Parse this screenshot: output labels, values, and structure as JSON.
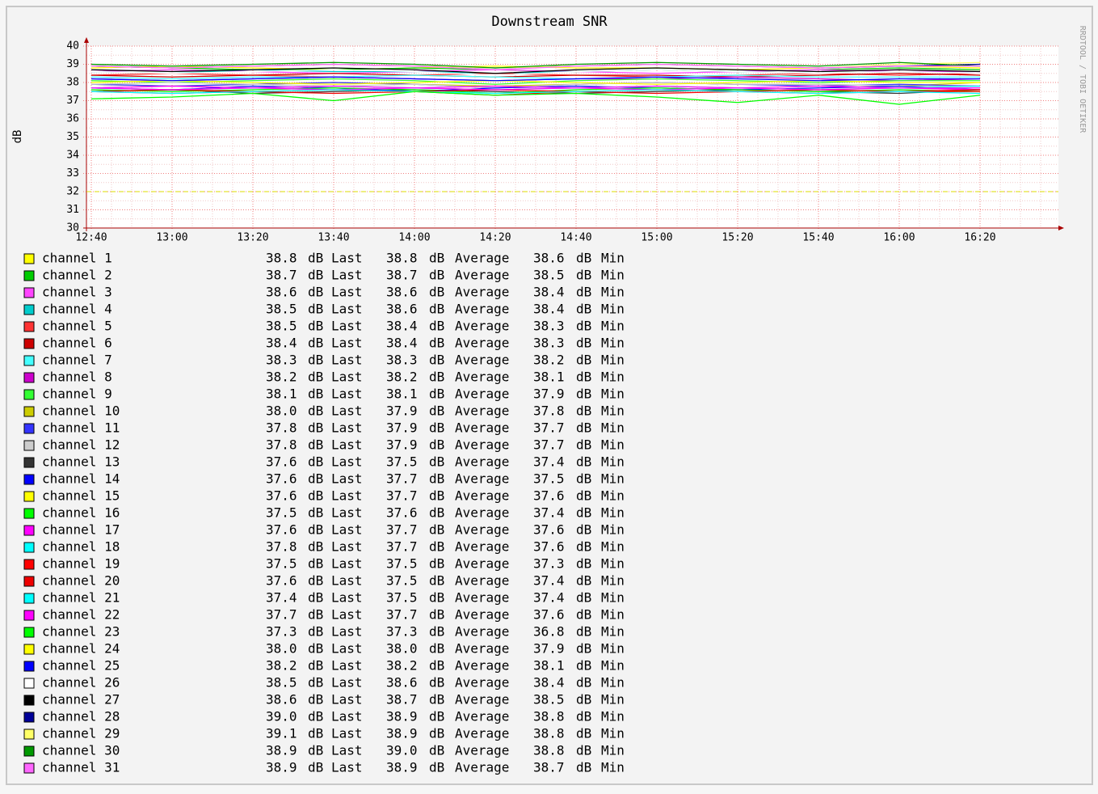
{
  "chart_data": {
    "type": "line",
    "title": "Downstream SNR",
    "y_label": "dB",
    "watermark": "RRDTOOL / TOBI OETIKER",
    "x": [
      "12:40",
      "13:00",
      "13:20",
      "13:40",
      "14:00",
      "14:20",
      "14:40",
      "15:00",
      "15:20",
      "15:40",
      "16:00",
      "16:20"
    ],
    "ylim": [
      30,
      40
    ],
    "yticks": [
      30,
      31,
      32,
      33,
      34,
      35,
      36,
      37,
      38,
      39,
      40
    ],
    "grid": true,
    "hrule": {
      "value": 32,
      "color": "#dddd00"
    },
    "unit": "dB",
    "stat_names": [
      "Last",
      "Average",
      "Min"
    ],
    "series": [
      {
        "name": "channel 1",
        "color": "#ffff00",
        "values": [
          38.8,
          38.9,
          38.8,
          38.7,
          38.8,
          38.9,
          38.8,
          38.8,
          38.7,
          38.8,
          38.9,
          38.8
        ],
        "stats": [
          38.8,
          38.8,
          38.6
        ],
        "stat_labels": [
          "38.8",
          "38.8",
          "38.6"
        ]
      },
      {
        "name": "channel 2",
        "color": "#00cc00",
        "values": [
          38.9,
          38.8,
          38.7,
          38.7,
          38.8,
          38.7,
          38.6,
          38.7,
          38.6,
          38.7,
          38.8,
          38.7
        ],
        "stats": [
          38.7,
          38.7,
          38.5
        ],
        "stat_labels": [
          "38.7",
          "38.7",
          "38.5"
        ]
      },
      {
        "name": "channel 3",
        "color": "#ff44ff",
        "values": [
          38.6,
          38.7,
          38.6,
          38.5,
          38.6,
          38.7,
          38.6,
          38.5,
          38.6,
          38.7,
          38.6,
          38.6
        ],
        "stats": [
          38.6,
          38.6,
          38.4
        ],
        "stat_labels": [
          "38.6",
          "38.6",
          "38.4"
        ]
      },
      {
        "name": "channel 4",
        "color": "#00cccc",
        "values": [
          38.6,
          38.5,
          38.7,
          38.6,
          38.6,
          38.5,
          38.6,
          38.7,
          38.6,
          38.5,
          38.6,
          38.5
        ],
        "stats": [
          38.5,
          38.6,
          38.4
        ],
        "stat_labels": [
          "38.5",
          "38.6",
          "38.4"
        ]
      },
      {
        "name": "channel 5",
        "color": "#ff3333",
        "values": [
          38.4,
          38.5,
          38.4,
          38.3,
          38.4,
          38.5,
          38.4,
          38.3,
          38.4,
          38.5,
          38.4,
          38.5
        ],
        "stats": [
          38.5,
          38.4,
          38.3
        ],
        "stat_labels": [
          "38.5",
          "38.4",
          "38.3"
        ]
      },
      {
        "name": "channel 6",
        "color": "#cc0000",
        "values": [
          38.4,
          38.3,
          38.4,
          38.5,
          38.4,
          38.3,
          38.4,
          38.4,
          38.3,
          38.4,
          38.5,
          38.4
        ],
        "stats": [
          38.4,
          38.4,
          38.3
        ],
        "stat_labels": [
          "38.4",
          "38.4",
          "38.3"
        ]
      },
      {
        "name": "channel 7",
        "color": "#44ffff",
        "values": [
          38.3,
          38.2,
          38.3,
          38.3,
          38.4,
          38.3,
          38.2,
          38.3,
          38.4,
          38.3,
          38.3,
          38.3
        ],
        "stats": [
          38.3,
          38.3,
          38.2
        ],
        "stat_labels": [
          "38.3",
          "38.3",
          "38.2"
        ]
      },
      {
        "name": "channel 8",
        "color": "#cc00cc",
        "values": [
          38.2,
          38.1,
          38.2,
          38.3,
          38.2,
          38.1,
          38.2,
          38.2,
          38.3,
          38.2,
          38.1,
          38.2
        ],
        "stats": [
          38.2,
          38.2,
          38.1
        ],
        "stat_labels": [
          "38.2",
          "38.2",
          "38.1"
        ]
      },
      {
        "name": "channel 9",
        "color": "#33ff33",
        "values": [
          38.1,
          38.0,
          38.1,
          38.2,
          38.1,
          37.9,
          38.1,
          38.2,
          38.1,
          38.0,
          38.1,
          38.1
        ],
        "stats": [
          38.1,
          38.1,
          37.9
        ],
        "stat_labels": [
          "38.1",
          "38.1",
          "37.9"
        ]
      },
      {
        "name": "channel 10",
        "color": "#cccc00",
        "values": [
          37.9,
          37.8,
          37.9,
          38.0,
          37.9,
          37.8,
          37.9,
          38.0,
          37.9,
          37.9,
          37.8,
          38.0
        ],
        "stats": [
          38.0,
          37.9,
          37.8
        ],
        "stat_labels": [
          "38.0",
          "37.9",
          "37.8"
        ]
      },
      {
        "name": "channel 11",
        "color": "#3333ff",
        "values": [
          37.9,
          37.8,
          37.9,
          38.0,
          37.9,
          37.7,
          37.9,
          38.0,
          37.9,
          37.8,
          37.9,
          37.8
        ],
        "stats": [
          37.8,
          37.9,
          37.7
        ],
        "stat_labels": [
          "37.8",
          "37.9",
          "37.7"
        ]
      },
      {
        "name": "channel 12",
        "color": "#cccccc",
        "values": [
          37.9,
          38.0,
          37.9,
          37.8,
          37.9,
          37.7,
          37.9,
          38.0,
          37.9,
          37.9,
          37.8,
          37.8
        ],
        "stats": [
          37.8,
          37.9,
          37.7
        ],
        "stat_labels": [
          "37.8",
          "37.9",
          "37.7"
        ]
      },
      {
        "name": "channel 13",
        "color": "#333333",
        "values": [
          37.5,
          37.6,
          37.4,
          37.5,
          37.6,
          37.5,
          37.4,
          37.5,
          37.6,
          37.5,
          37.4,
          37.6
        ],
        "stats": [
          37.6,
          37.5,
          37.4
        ],
        "stat_labels": [
          "37.6",
          "37.5",
          "37.4"
        ]
      },
      {
        "name": "channel 14",
        "color": "#0000ff",
        "values": [
          37.7,
          37.6,
          37.8,
          37.7,
          37.5,
          37.7,
          37.8,
          37.7,
          37.6,
          37.7,
          37.8,
          37.6
        ],
        "stats": [
          37.6,
          37.7,
          37.5
        ],
        "stat_labels": [
          "37.6",
          "37.7",
          "37.5"
        ]
      },
      {
        "name": "channel 15",
        "color": "#ffff00",
        "values": [
          37.7,
          37.6,
          37.7,
          37.8,
          37.7,
          37.6,
          37.7,
          37.8,
          37.7,
          37.6,
          37.7,
          37.6
        ],
        "stats": [
          37.6,
          37.7,
          37.6
        ],
        "stat_labels": [
          "37.6",
          "37.7",
          "37.6"
        ]
      },
      {
        "name": "channel 16",
        "color": "#00ff00",
        "values": [
          37.6,
          37.5,
          37.6,
          37.7,
          37.6,
          37.4,
          37.6,
          37.7,
          37.6,
          37.5,
          37.6,
          37.5
        ],
        "stats": [
          37.5,
          37.6,
          37.4
        ],
        "stat_labels": [
          "37.5",
          "37.6",
          "37.4"
        ]
      },
      {
        "name": "channel 17",
        "color": "#ff00ff",
        "values": [
          37.7,
          37.8,
          37.7,
          37.6,
          37.7,
          37.8,
          37.7,
          37.6,
          37.7,
          37.8,
          37.7,
          37.6
        ],
        "stats": [
          37.6,
          37.7,
          37.6
        ],
        "stat_labels": [
          "37.6",
          "37.7",
          "37.6"
        ]
      },
      {
        "name": "channel 18",
        "color": "#00ffff",
        "values": [
          37.7,
          37.6,
          37.7,
          37.8,
          37.7,
          37.6,
          37.7,
          37.8,
          37.7,
          37.6,
          37.7,
          37.8
        ],
        "stats": [
          37.8,
          37.7,
          37.6
        ],
        "stat_labels": [
          "37.8",
          "37.7",
          "37.6"
        ]
      },
      {
        "name": "channel 19",
        "color": "#ff0000",
        "values": [
          37.5,
          37.4,
          37.5,
          37.6,
          37.5,
          37.3,
          37.5,
          37.6,
          37.5,
          37.4,
          37.5,
          37.5
        ],
        "stats": [
          37.5,
          37.5,
          37.3
        ],
        "stat_labels": [
          "37.5",
          "37.5",
          "37.3"
        ]
      },
      {
        "name": "channel 20",
        "color": "#ee0000",
        "values": [
          37.5,
          37.6,
          37.5,
          37.4,
          37.5,
          37.6,
          37.5,
          37.4,
          37.5,
          37.6,
          37.5,
          37.6
        ],
        "stats": [
          37.6,
          37.5,
          37.4
        ],
        "stat_labels": [
          "37.6",
          "37.5",
          "37.4"
        ]
      },
      {
        "name": "channel 21",
        "color": "#00ffff",
        "values": [
          37.5,
          37.4,
          37.5,
          37.6,
          37.5,
          37.4,
          37.5,
          37.6,
          37.5,
          37.4,
          37.5,
          37.4
        ],
        "stats": [
          37.4,
          37.5,
          37.4
        ],
        "stat_labels": [
          "37.4",
          "37.5",
          "37.4"
        ]
      },
      {
        "name": "channel 22",
        "color": "#ff00ff",
        "values": [
          37.7,
          37.6,
          37.7,
          37.8,
          37.7,
          37.6,
          37.7,
          37.8,
          37.7,
          37.6,
          37.7,
          37.7
        ],
        "stats": [
          37.7,
          37.7,
          37.6
        ],
        "stat_labels": [
          "37.7",
          "37.7",
          "37.6"
        ]
      },
      {
        "name": "channel 23",
        "color": "#00ff00",
        "values": [
          37.1,
          37.2,
          37.4,
          37.0,
          37.5,
          37.3,
          37.4,
          37.2,
          36.9,
          37.3,
          36.8,
          37.3
        ],
        "stats": [
          37.3,
          37.3,
          36.8
        ],
        "stat_labels": [
          "37.3",
          "37.3",
          "36.8"
        ]
      },
      {
        "name": "channel 24",
        "color": "#ffff00",
        "values": [
          38.0,
          38.1,
          38.0,
          37.9,
          38.0,
          38.1,
          38.0,
          37.9,
          38.0,
          38.1,
          38.0,
          38.0
        ],
        "stats": [
          38.0,
          38.0,
          37.9
        ],
        "stat_labels": [
          "38.0",
          "38.0",
          "37.9"
        ]
      },
      {
        "name": "channel 25",
        "color": "#0000ff",
        "values": [
          38.2,
          38.1,
          38.2,
          38.3,
          38.2,
          38.1,
          38.2,
          38.3,
          38.2,
          38.1,
          38.2,
          38.2
        ],
        "stats": [
          38.2,
          38.2,
          38.1
        ],
        "stat_labels": [
          "38.2",
          "38.2",
          "38.1"
        ]
      },
      {
        "name": "channel 26",
        "color": "#ffffff",
        "values": [
          38.6,
          38.5,
          38.6,
          38.7,
          38.6,
          38.4,
          38.6,
          38.7,
          38.6,
          38.5,
          38.6,
          38.5
        ],
        "stats": [
          38.5,
          38.6,
          38.4
        ],
        "stat_labels": [
          "38.5",
          "38.6",
          "38.4"
        ]
      },
      {
        "name": "channel 27",
        "color": "#000000",
        "values": [
          38.7,
          38.6,
          38.7,
          38.8,
          38.7,
          38.5,
          38.7,
          38.8,
          38.7,
          38.6,
          38.7,
          38.6
        ],
        "stats": [
          38.6,
          38.7,
          38.5
        ],
        "stat_labels": [
          "38.6",
          "38.7",
          "38.5"
        ]
      },
      {
        "name": "channel 28",
        "color": "#000099",
        "values": [
          38.9,
          38.8,
          38.9,
          39.0,
          38.9,
          38.8,
          38.9,
          39.0,
          38.9,
          38.8,
          38.9,
          39.0
        ],
        "stats": [
          39.0,
          38.9,
          38.8
        ],
        "stat_labels": [
          "39.0",
          "38.9",
          "38.8"
        ]
      },
      {
        "name": "channel 29",
        "color": "#ffff66",
        "values": [
          38.9,
          38.8,
          38.9,
          39.0,
          38.9,
          38.8,
          38.9,
          39.0,
          38.9,
          38.8,
          39.0,
          39.1
        ],
        "stats": [
          39.1,
          38.9,
          38.8
        ],
        "stat_labels": [
          "39.1",
          "38.9",
          "38.8"
        ]
      },
      {
        "name": "channel 30",
        "color": "#009900",
        "values": [
          39.0,
          38.9,
          39.0,
          39.1,
          39.0,
          38.8,
          39.0,
          39.1,
          39.0,
          38.9,
          39.1,
          38.9
        ],
        "stats": [
          38.9,
          39.0,
          38.8
        ],
        "stat_labels": [
          "38.9",
          "39.0",
          "38.8"
        ]
      },
      {
        "name": "channel 31",
        "color": "#ff66ff",
        "values": [
          38.9,
          38.8,
          38.9,
          39.0,
          38.9,
          38.7,
          38.9,
          39.0,
          38.9,
          38.8,
          38.9,
          38.9
        ],
        "stats": [
          38.9,
          38.9,
          38.7
        ],
        "stat_labels": [
          "38.9",
          "38.9",
          "38.7"
        ]
      }
    ]
  }
}
